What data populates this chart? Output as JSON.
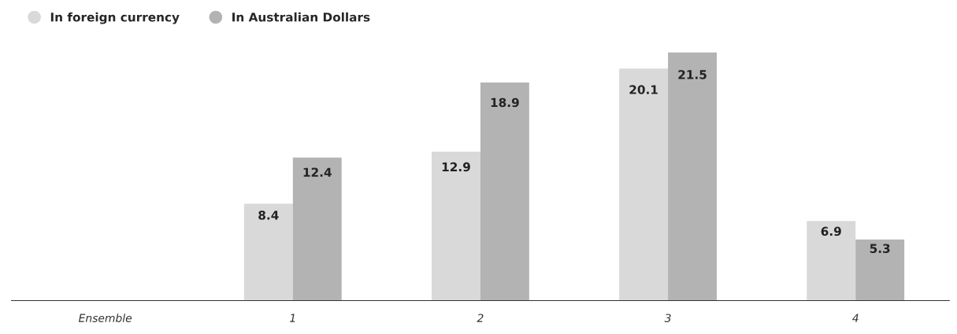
{
  "chart_data": {
    "type": "bar",
    "categories": [
      "Ensemble",
      "1",
      "2",
      "3",
      "4"
    ],
    "series": [
      {
        "name": "In foreign currency",
        "color": "#d9d9d9",
        "values": [
          null,
          8.4,
          12.9,
          20.1,
          6.9
        ]
      },
      {
        "name": "In Australian Dollars",
        "color": "#b3b3b3",
        "values": [
          null,
          12.4,
          18.9,
          21.5,
          5.3
        ]
      }
    ],
    "data_labels": true,
    "legend": "top left",
    "grid": false
  }
}
